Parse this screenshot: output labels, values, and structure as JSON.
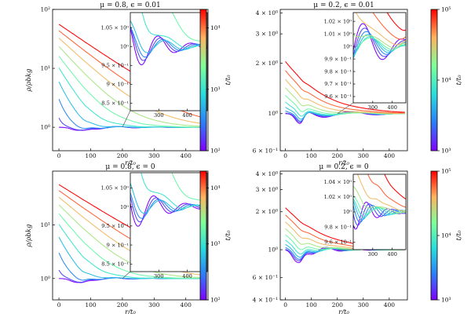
{
  "chart_data": [
    {
      "type": "line",
      "title": "μ = 0.8, ϵ = 0.01",
      "xlabel": "r/t₀",
      "ylabel": "ρ/ρbkg",
      "xlim": [
        -20,
        470
      ],
      "ylim": [
        0.4,
        100
      ],
      "yscale": "log",
      "xticks": [
        "0",
        "100",
        "200",
        "300",
        "400"
      ],
      "yticks": [
        {
          "value": 1,
          "label": "10⁰"
        },
        {
          "value": 10,
          "label": "10¹"
        },
        {
          "value": 100,
          "label": "10²"
        }
      ],
      "colorbar": {
        "label": "t/t₀",
        "scale": "log",
        "min": 100,
        "max": 20000,
        "ticks": [
          {
            "value": 100,
            "label": "10²"
          },
          {
            "value": 1000,
            "label": "10³"
          },
          {
            "value": 10000,
            "label": "10⁴"
          }
        ]
      },
      "inset": {
        "xlim": [
          200,
          470
        ],
        "ylim": [
          0.83,
          1.09
        ],
        "xticks": [
          "300",
          "400"
        ],
        "yticks": [
          {
            "value": 1.05,
            "label": "1.05 × 10⁰"
          },
          {
            "value": 1.0,
            "label": "10⁰"
          },
          {
            "value": 0.95,
            "label": "9.5 × 10⁻¹"
          },
          {
            "value": 0.9,
            "label": "9 × 10⁻¹"
          },
          {
            "value": 0.85,
            "label": "8.5 × 10⁻¹"
          }
        ]
      },
      "model": {
        "tmin": 100,
        "tmax": 20000,
        "n": 10,
        "A": 55,
        "s0": 6,
        "ks": 0.48,
        "d": 0.55,
        "x0": 70,
        "Lmin": 115,
        "Lmax": 150,
        "a1": 0.4,
        "a2": 0.1,
        "k1": 0.45,
        "k2": 0.13,
        "w1": 28,
        "w2": 13
      }
    },
    {
      "type": "line",
      "title": "μ = 0.2, ϵ = 0.01",
      "xlabel": "r/t₀",
      "ylabel": "",
      "xlim": [
        -20,
        470
      ],
      "ylim": [
        0.6,
        4.2
      ],
      "yscale": "log",
      "xticks": [
        "0",
        "100",
        "200",
        "300",
        "400"
      ],
      "yticks": [
        {
          "value": 0.6,
          "label": "6 × 10⁻¹"
        },
        {
          "value": 1,
          "label": "10⁰"
        },
        {
          "value": 2,
          "label": "2 × 10⁰"
        },
        {
          "value": 3,
          "label": "3 × 10⁰"
        },
        {
          "value": 4,
          "label": "4 × 10⁰"
        }
      ],
      "colorbar": {
        "label": "t/t₀",
        "scale": "log",
        "min": 1000,
        "max": 100000,
        "ticks": [
          {
            "value": 1000,
            "label": "10³"
          },
          {
            "value": 10000,
            "label": "10⁴"
          },
          {
            "value": 100000,
            "label": "10⁵"
          }
        ]
      },
      "inset": {
        "xlim": [
          200,
          470
        ],
        "ylim": [
          0.955,
          1.027
        ],
        "xticks": [
          "300",
          "400"
        ],
        "yticks": [
          {
            "value": 1.02,
            "label": "1.02 × 10⁰"
          },
          {
            "value": 1.01,
            "label": "1.01 × 10⁰"
          },
          {
            "value": 1.0,
            "label": "10⁰"
          },
          {
            "value": 0.99,
            "label": "9.9 × 10⁻¹"
          },
          {
            "value": 0.98,
            "label": "9.8 × 10⁻¹"
          },
          {
            "value": 0.97,
            "label": "9.7 × 10⁻¹"
          },
          {
            "value": 0.96,
            "label": "9.6 × 10⁻¹"
          }
        ]
      },
      "model": {
        "tmin": 1000,
        "tmax": 100000,
        "n": 10,
        "A": 1.05,
        "s0": 5,
        "ks": 0.45,
        "d": 0.75,
        "x0": 55,
        "Lmin": 200,
        "Lmax": 270,
        "a1": 0.28,
        "a2": 0.03,
        "k1": 0.5,
        "k2": 0.25,
        "w1": 22,
        "w2": 16
      }
    },
    {
      "type": "line",
      "title": "μ = 0.8, ϵ = 0",
      "xlabel": "r/t₀",
      "ylabel": "ρ/ρbkg",
      "xlim": [
        -20,
        470
      ],
      "ylim": [
        0.4,
        100
      ],
      "yscale": "log",
      "xticks": [
        "0",
        "100",
        "200",
        "300",
        "400"
      ],
      "yticks": [
        {
          "value": 1,
          "label": "10⁰"
        },
        {
          "value": 10,
          "label": "10¹"
        }
      ],
      "colorbar": {
        "label": "t/t₀",
        "scale": "log",
        "min": 100,
        "max": 20000,
        "ticks": [
          {
            "value": 100,
            "label": "10²"
          },
          {
            "value": 1000,
            "label": "10³"
          },
          {
            "value": 10000,
            "label": "10⁴"
          }
        ]
      },
      "inset": {
        "xlim": [
          200,
          470
        ],
        "ylim": [
          0.83,
          1.09
        ],
        "xticks": [
          "300",
          "400"
        ],
        "yticks": [
          {
            "value": 1.05,
            "label": "1.05 × 10⁰"
          },
          {
            "value": 1.0,
            "label": "10⁰"
          },
          {
            "value": 0.95,
            "label": "9.5 × 10⁻¹"
          },
          {
            "value": 0.9,
            "label": "9 × 10⁻¹"
          },
          {
            "value": 0.85,
            "label": "8.5 × 10⁻¹"
          }
        ]
      },
      "model": {
        "tmin": 100,
        "tmax": 20000,
        "n": 10,
        "A": 55,
        "s0": 6,
        "ks": 0.48,
        "d": 0.65,
        "x0": 65,
        "Lmin": 110,
        "Lmax": 145,
        "a1": 0.42,
        "a2": 0.12,
        "k1": 0.45,
        "k2": 0.14,
        "w1": 27,
        "w2": 12
      }
    },
    {
      "type": "line",
      "title": "μ = 0.2, ϵ = 0",
      "xlabel": "r/t₀",
      "ylabel": "",
      "xlim": [
        -20,
        470
      ],
      "ylim": [
        0.4,
        4.2
      ],
      "yscale": "log",
      "xticks": [
        "0",
        "100",
        "200",
        "300",
        "400"
      ],
      "yticks": [
        {
          "value": 0.4,
          "label": "4 × 10⁻¹"
        },
        {
          "value": 0.6,
          "label": "6 × 10⁻¹"
        },
        {
          "value": 1,
          "label": "10⁰"
        },
        {
          "value": 2,
          "label": "2 × 10⁰"
        },
        {
          "value": 3,
          "label": "3 × 10⁰"
        },
        {
          "value": 4,
          "label": "4 × 10⁰"
        }
      ],
      "colorbar": {
        "label": "t/t₀",
        "scale": "log",
        "min": 1000,
        "max": 100000,
        "ticks": [
          {
            "value": 1000,
            "label": "10³"
          },
          {
            "value": 10000,
            "label": "10⁴"
          },
          {
            "value": 100000,
            "label": "10⁵"
          }
        ]
      },
      "inset": {
        "xlim": [
          200,
          470
        ],
        "ylim": [
          0.95,
          1.05
        ],
        "xticks": [
          "300",
          "400"
        ],
        "yticks": [
          {
            "value": 1.04,
            "label": "1.04 × 10⁰"
          },
          {
            "value": 1.02,
            "label": "1.02 × 10⁰"
          },
          {
            "value": 1.0,
            "label": "10⁰"
          },
          {
            "value": 0.98,
            "label": "9.8 × 10⁻¹"
          },
          {
            "value": 0.96,
            "label": "9.6 × 10⁻¹"
          }
        ]
      },
      "model": {
        "tmin": 1000,
        "tmax": 100000,
        "n": 10,
        "A": 1.15,
        "s0": 5,
        "ks": 0.45,
        "d": 0.85,
        "x0": 50,
        "Lmin": 110,
        "Lmax": 175,
        "a1": 0.4,
        "a2": 0.05,
        "k1": 0.55,
        "k2": 0.3,
        "w1": 24,
        "w2": 22
      }
    }
  ]
}
